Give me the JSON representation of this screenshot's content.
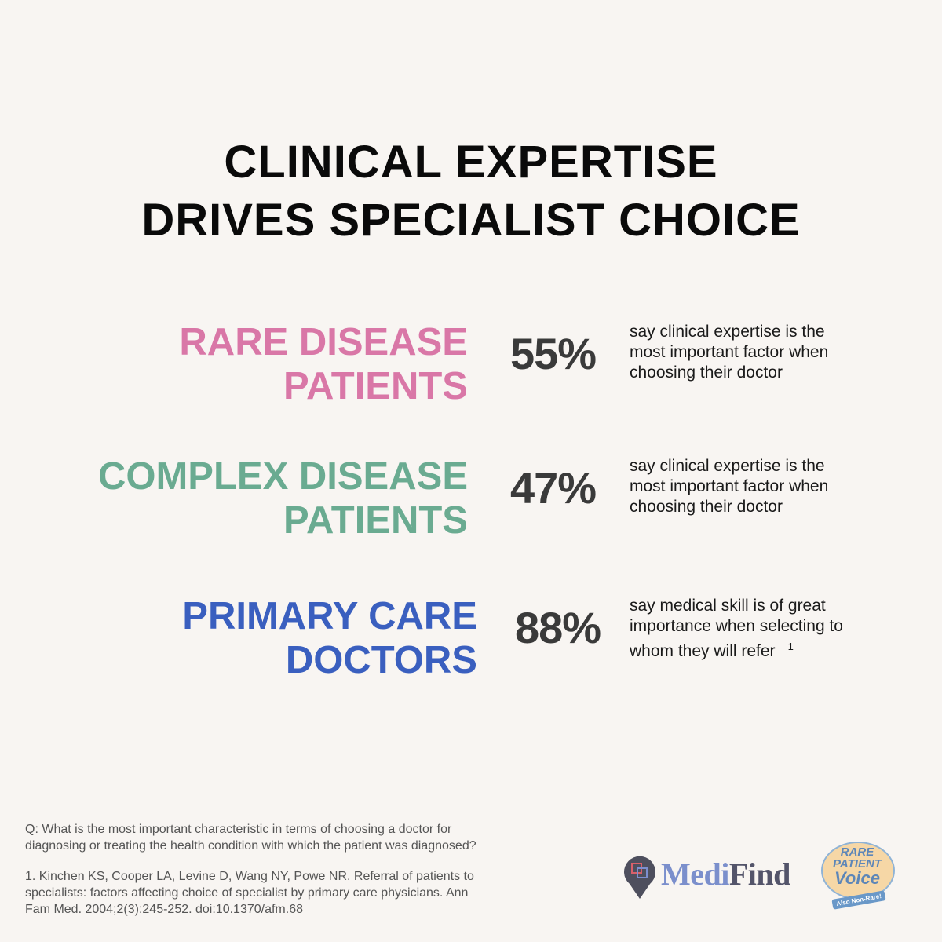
{
  "title": {
    "line1": "CLINICAL EXPERTISE",
    "line2": "DRIVES SPECIALIST CHOICE"
  },
  "stats": [
    {
      "group_line1": "RARE DISEASE",
      "group_line2": "PATIENTS",
      "percent": "55%",
      "desc_line1": "say clinical expertise is the",
      "desc_line2": "most important factor when",
      "desc_line3": "choosing their doctor",
      "color": "#d977a7"
    },
    {
      "group_line1": "COMPLEX DISEASE",
      "group_line2": "PATIENTS",
      "percent": "47%",
      "desc_line1": "say clinical expertise is the",
      "desc_line2": "most important factor when",
      "desc_line3": "choosing their doctor",
      "color": "#6aab91"
    },
    {
      "group_line1": "PRIMARY CARE",
      "group_line2": "DOCTORS",
      "percent": "88%",
      "desc_line1": "say medical skill is of great",
      "desc_line2": "importance when selecting to",
      "desc_line3": "whom they will refer",
      "footnote": "1",
      "color": "#3a5fbf"
    }
  ],
  "footer": {
    "question_line1": "Q: What is the most important characteristic in terms of choosing a doctor for",
    "question_line2": "diagnosing or treating the health condition with which the patient was diagnosed?",
    "ref_line1": "1. Kinchen KS, Cooper LA, Levine D, Wang NY, Powe NR. Referral of patients to",
    "ref_line2": "specialists: factors affecting choice of specialist by primary care physicians. Ann",
    "ref_line3": "Fam Med. 2004;2(3):245-252. doi:10.1370/afm.68"
  },
  "logos": {
    "medifind_a": "Medi",
    "medifind_b": "Find",
    "rpv_line1": "RARE",
    "rpv_line2": "PATIENT",
    "rpv_line3": "Voice",
    "rpv_tag": "Also Non-Rare!"
  }
}
